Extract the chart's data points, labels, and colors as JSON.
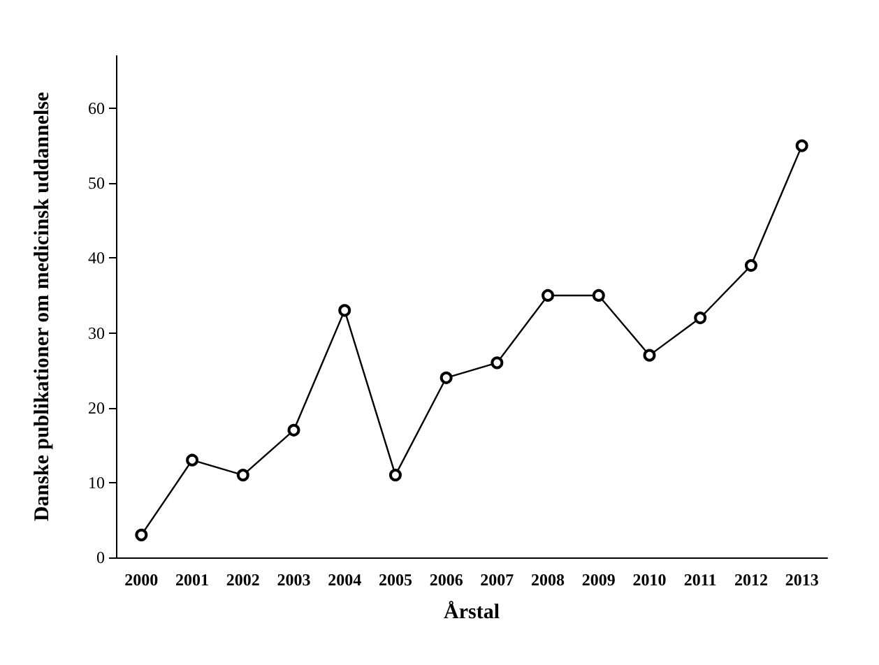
{
  "chart_data": {
    "type": "line",
    "xlabel": "Årstal",
    "ylabel": "Danske publikationer om medicinsk uddannelse",
    "categories": [
      "2000",
      "2001",
      "2002",
      "2003",
      "2004",
      "2005",
      "2006",
      "2007",
      "2008",
      "2009",
      "2010",
      "2011",
      "2012",
      "2013"
    ],
    "values": [
      3,
      13,
      11,
      17,
      33,
      11,
      24,
      26,
      35,
      35,
      27,
      32,
      39,
      55
    ],
    "color": "#000000",
    "marker": "circle",
    "line_style": "solid",
    "ylim": [
      0,
      67
    ],
    "yticks": [
      0,
      10,
      20,
      30,
      40,
      50,
      60
    ]
  }
}
